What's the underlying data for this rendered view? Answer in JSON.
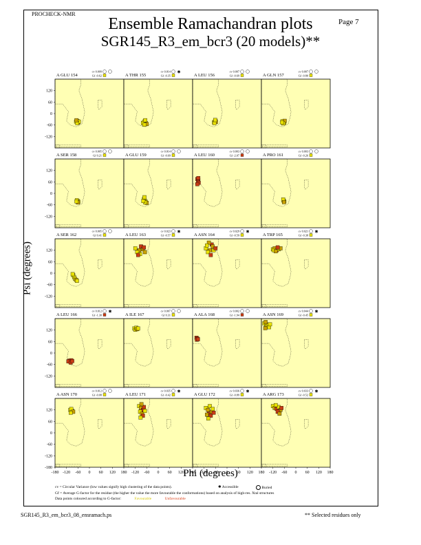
{
  "header": {
    "program": "PROCHECK-NMR",
    "page": "Page  7",
    "title": "Ensemble Ramachandran plots",
    "subtitle": "SGR145_R3_em_bcr3 (20 models)**"
  },
  "footer": {
    "filename": "SGR145_R3_em_bcr3_08_ensramach.ps",
    "note": "** Selected residues only"
  },
  "legend": {
    "cv_text": "cv = Circular Variance (low values signify high clustering of the data points).",
    "accessible": "Accessible",
    "buried": "Buried",
    "gf_text": "Gf = Average G-factor for the residue (the higher the value the more favourable the conformations) based on analysis of high-res. Xtal structures",
    "colour_text": "Data points coloured according to G-factor:",
    "favourable": "Favourable",
    "unfavourable": "Unfavourable"
  },
  "colors": {
    "panel_bg": "#ffffb4",
    "favourable": "#e8e000",
    "mid": "#c8a000",
    "unfavourable": "#c83c14"
  },
  "chart_data": {
    "type": "scatter",
    "xlabel": "Phi (degrees)",
    "ylabel": "Psi (degrees)",
    "xlim": [
      -180,
      180
    ],
    "ylim": [
      -180,
      180
    ],
    "x_ticks": [
      "-180",
      "-120",
      "-60",
      "0",
      "60",
      "120",
      "180"
    ],
    "y_ticks": [
      "120",
      "60",
      "0",
      "-60",
      "-120"
    ],
    "y_ticks_bottom": [
      "120",
      "60",
      "0",
      "-60",
      "-120",
      "-180"
    ],
    "panels": [
      {
        "residue": "A GLU 154",
        "cv": "cv 0.009",
        "gf": "Gf -0.62",
        "access": "buried",
        "gfclass": "fav",
        "points": [
          [
            -62,
            -40
          ],
          [
            -58,
            -45
          ],
          [
            -66,
            -38
          ],
          [
            -60,
            -48
          ],
          [
            -70,
            -42
          ],
          [
            -55,
            -42
          ],
          [
            -64,
            -50
          ],
          [
            -68,
            -35
          ]
        ]
      },
      {
        "residue": "A THR 155",
        "cv": "cv 0.014",
        "gf": "Gf -0.35",
        "access": "accessible",
        "gfclass": "fav",
        "points": [
          [
            -70,
            -40
          ],
          [
            -65,
            -50
          ],
          [
            -75,
            -45
          ],
          [
            -60,
            -55
          ],
          [
            -80,
            -50
          ],
          [
            -68,
            -35
          ],
          [
            -72,
            -58
          ]
        ]
      },
      {
        "residue": "A LEU 156",
        "cv": "cv 0.007",
        "gf": "Gf -0.69",
        "access": "buried",
        "gfclass": "fav",
        "points": [
          [
            -64,
            -42
          ],
          [
            -60,
            -38
          ],
          [
            -68,
            -46
          ],
          [
            -58,
            -44
          ],
          [
            -66,
            -50
          ],
          [
            -62,
            -34
          ]
        ]
      },
      {
        "residue": "A GLN 157",
        "cv": "cv 0.007",
        "gf": "Gf -0.80",
        "access": "buried",
        "gfclass": "fav",
        "points": [
          [
            -64,
            -42
          ],
          [
            -60,
            -48
          ],
          [
            -70,
            -40
          ],
          [
            -58,
            -38
          ],
          [
            -66,
            -52
          ],
          [
            -72,
            -46
          ]
        ]
      },
      {
        "residue": "A SER 158",
        "cv": "cv 0.005",
        "gf": "Gf 0.21",
        "access": "buried",
        "gfclass": "fav",
        "points": [
          [
            -62,
            -40
          ],
          [
            -58,
            -44
          ],
          [
            -66,
            -36
          ],
          [
            -60,
            -48
          ],
          [
            -68,
            -42
          ]
        ]
      },
      {
        "residue": "A GLU 159",
        "cv": "cv 0.014",
        "gf": "Gf -0.69",
        "access": "buried",
        "gfclass": "fav",
        "points": [
          [
            -70,
            -38
          ],
          [
            -65,
            -45
          ],
          [
            -75,
            -30
          ],
          [
            -60,
            -50
          ],
          [
            -72,
            -20
          ],
          [
            -68,
            -48
          ],
          [
            -78,
            -40
          ]
        ]
      },
      {
        "residue": "A LEU 160",
        "cv": "cv 0.003",
        "gf": "Gf -2.07",
        "access": "buried",
        "gfclass": "unf",
        "points": [
          [
            -155,
            75
          ],
          [
            -150,
            70
          ],
          [
            -152,
            60
          ],
          [
            -148,
            55
          ],
          [
            -155,
            48
          ],
          [
            -150,
            80
          ]
        ]
      },
      {
        "residue": "A PRO 161",
        "cv": "cv 0.003",
        "gf": "Gf -0.26",
        "access": "buried",
        "gfclass": "fav",
        "points": [
          [
            -64,
            -38
          ],
          [
            -60,
            -42
          ],
          [
            -66,
            -32
          ],
          [
            -62,
            -46
          ]
        ]
      },
      {
        "residue": "A SER 162",
        "cv": "cv 0.005",
        "gf": "Gf 0.41",
        "access": "buried",
        "gfclass": "fav",
        "points": [
          [
            -85,
            -10
          ],
          [
            -80,
            -20
          ],
          [
            -75,
            -30
          ],
          [
            -70,
            -35
          ],
          [
            -88,
            -5
          ],
          [
            -65,
            -40
          ]
        ]
      },
      {
        "residue": "A LEU 163",
        "cv": "cv 0.023",
        "gf": "Gf -0.57",
        "access": "accessible",
        "gfclass": "mix",
        "points": [
          [
            -120,
            130
          ],
          [
            -100,
            120
          ],
          [
            -90,
            140
          ],
          [
            -110,
            110
          ],
          [
            -80,
            125
          ],
          [
            -75,
            135
          ],
          [
            -95,
            100
          ],
          [
            -70,
            110
          ],
          [
            -105,
            95
          ]
        ]
      },
      {
        "residue": "A ASN 164",
        "cv": "cv 0.029",
        "gf": "Gf -0.59",
        "access": "accessible",
        "gfclass": "mix",
        "points": [
          [
            -110,
            130
          ],
          [
            -90,
            120
          ],
          [
            -80,
            150
          ],
          [
            -100,
            110
          ],
          [
            -75,
            140
          ],
          [
            -85,
            95
          ],
          [
            -70,
            120
          ],
          [
            -95,
            160
          ],
          [
            -60,
            130
          ],
          [
            -105,
            145
          ]
        ]
      },
      {
        "residue": "A TRP 165",
        "cv": "cv 0.021",
        "gf": "Gf -0.38",
        "access": "accessible",
        "gfclass": "mix",
        "points": [
          [
            -120,
            125
          ],
          [
            -110,
            130
          ],
          [
            -100,
            120
          ],
          [
            -90,
            125
          ],
          [
            -80,
            130
          ],
          [
            -95,
            135
          ],
          [
            -115,
            120
          ],
          [
            -105,
            115
          ]
        ]
      },
      {
        "residue": "A LEU 166",
        "cv": "cv 0.012",
        "gf": "Gf -1.30",
        "access": "accessible",
        "gfclass": "unf",
        "points": [
          [
            -105,
            -40
          ],
          [
            -100,
            -45
          ],
          [
            -95,
            -38
          ],
          [
            -110,
            -44
          ],
          [
            -98,
            -50
          ],
          [
            -90,
            -42
          ]
        ]
      },
      {
        "residue": "A ILE 167",
        "cv": "cv 0.007",
        "gf": "Gf 0.31",
        "access": "buried",
        "gfclass": "fav",
        "points": [
          [
            -125,
            128
          ],
          [
            -120,
            122
          ],
          [
            -115,
            132
          ],
          [
            -110,
            125
          ],
          [
            -105,
            128
          ]
        ]
      },
      {
        "residue": "A ALA 168",
        "cv": "cv 0.002",
        "gf": "Gf -1.94",
        "access": "buried",
        "gfclass": "unf",
        "points": [
          [
            -160,
            80
          ],
          [
            -155,
            75
          ],
          [
            -158,
            70
          ],
          [
            -152,
            72
          ]
        ]
      },
      {
        "residue": "A ASN 169",
        "cv": "cv 0.044",
        "gf": "Gf -0.45",
        "access": "accessible",
        "gfclass": "fav",
        "points": [
          [
            -165,
            155
          ],
          [
            -155,
            150
          ],
          [
            -150,
            140
          ],
          [
            -160,
            130
          ],
          [
            -145,
            148
          ],
          [
            -140,
            135
          ],
          [
            -135,
            150
          ],
          [
            -158,
            162
          ]
        ]
      },
      {
        "residue": "A ASN 170",
        "cv": "cv 0.012",
        "gf": "Gf -0.08",
        "access": "buried",
        "gfclass": "fav",
        "points": [
          [
            -100,
            120
          ],
          [
            -90,
            115
          ],
          [
            -95,
            125
          ],
          [
            -85,
            110
          ],
          [
            -98,
            105
          ]
        ]
      },
      {
        "residue": "A LEU 171",
        "cv": "cv 0.035",
        "gf": "Gf -0.42",
        "access": "accessible",
        "gfclass": "mix",
        "points": [
          [
            -100,
            140
          ],
          [
            -90,
            130
          ],
          [
            -80,
            120
          ],
          [
            -95,
            110
          ],
          [
            -85,
            100
          ],
          [
            -75,
            135
          ],
          [
            -70,
            115
          ],
          [
            -88,
            150
          ],
          [
            -80,
            90
          ],
          [
            -92,
            80
          ]
        ]
      },
      {
        "residue": "A GLU 172",
        "cv": "cv 0.036",
        "gf": "Gf -0.89",
        "access": "accessible",
        "gfclass": "mix",
        "points": [
          [
            -110,
            130
          ],
          [
            -100,
            120
          ],
          [
            -95,
            100
          ],
          [
            -90,
            140
          ],
          [
            -80,
            110
          ],
          [
            -85,
            90
          ],
          [
            -75,
            125
          ],
          [
            -105,
            95
          ],
          [
            -70,
            105
          ],
          [
            -98,
            75
          ]
        ]
      },
      {
        "residue": "A ARG 173",
        "cv": "cv 0.033",
        "gf": "Gf -0.52",
        "access": "accessible",
        "gfclass": "mix",
        "points": [
          [
            -120,
            140
          ],
          [
            -110,
            130
          ],
          [
            -100,
            125
          ],
          [
            -90,
            135
          ],
          [
            -80,
            120
          ],
          [
            -95,
            110
          ],
          [
            -105,
            145
          ],
          [
            -85,
            100
          ],
          [
            -75,
            130
          ]
        ]
      }
    ]
  }
}
